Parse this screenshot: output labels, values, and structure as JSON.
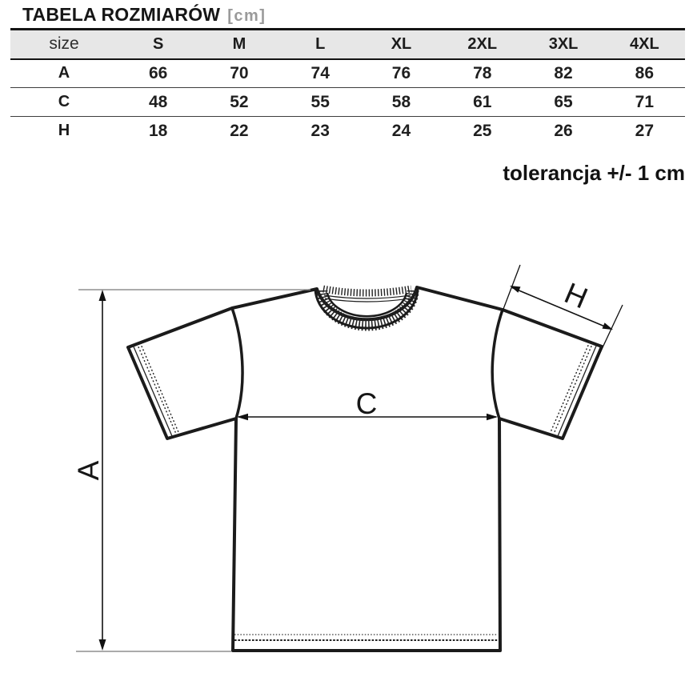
{
  "page_title": "TABELA ROZMIARÓW",
  "unit": "[cm]",
  "size_table": {
    "columns": [
      "size",
      "S",
      "M",
      "L",
      "XL",
      "2XL",
      "3XL",
      "4XL"
    ],
    "rows": [
      {
        "label": "A",
        "values": [
          "66",
          "70",
          "74",
          "76",
          "78",
          "82",
          "86"
        ]
      },
      {
        "label": "C",
        "values": [
          "48",
          "52",
          "55",
          "58",
          "61",
          "65",
          "71"
        ]
      },
      {
        "label": "H",
        "values": [
          "18",
          "22",
          "23",
          "24",
          "25",
          "26",
          "27"
        ]
      }
    ]
  },
  "tolerance_note": "tolerancja +/- 1 cm",
  "diagram_labels": {
    "length": "A",
    "chest": "C",
    "sleeve": "H"
  },
  "colors": {
    "header_bg": "#e7e7e7",
    "outline": "#1b1b1b",
    "muted_text": "#9a9a9a",
    "extension_line": "#8f8f8f"
  }
}
